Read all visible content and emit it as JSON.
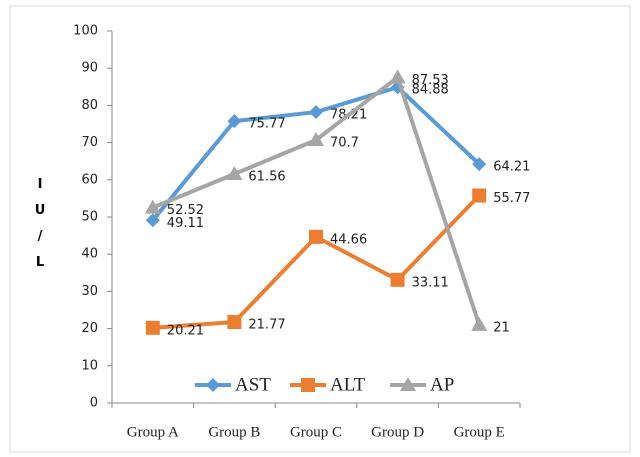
{
  "chart_data": {
    "type": "line",
    "y_label": "I U / L",
    "categories": [
      "Group A",
      "Group B",
      "Group C",
      "Group D",
      "Group E"
    ],
    "series": [
      {
        "name": "AST",
        "color": "#5b9bd5",
        "marker": "diamond",
        "values": [
          49.11,
          75.77,
          78.21,
          84.88,
          64.21
        ]
      },
      {
        "name": "ALT",
        "color": "#ed7d31",
        "marker": "square",
        "values": [
          20.21,
          21.77,
          44.66,
          33.11,
          55.77
        ]
      },
      {
        "name": "AP",
        "color": "#a5a5a5",
        "marker": "triangle",
        "values": [
          52.52,
          61.56,
          70.7,
          87.53,
          21
        ]
      }
    ],
    "ylim": [
      0,
      100
    ],
    "yticks": [
      0,
      10,
      20,
      30,
      40,
      50,
      60,
      70,
      80,
      90,
      100
    ],
    "grid": false,
    "legend": "bottom"
  }
}
